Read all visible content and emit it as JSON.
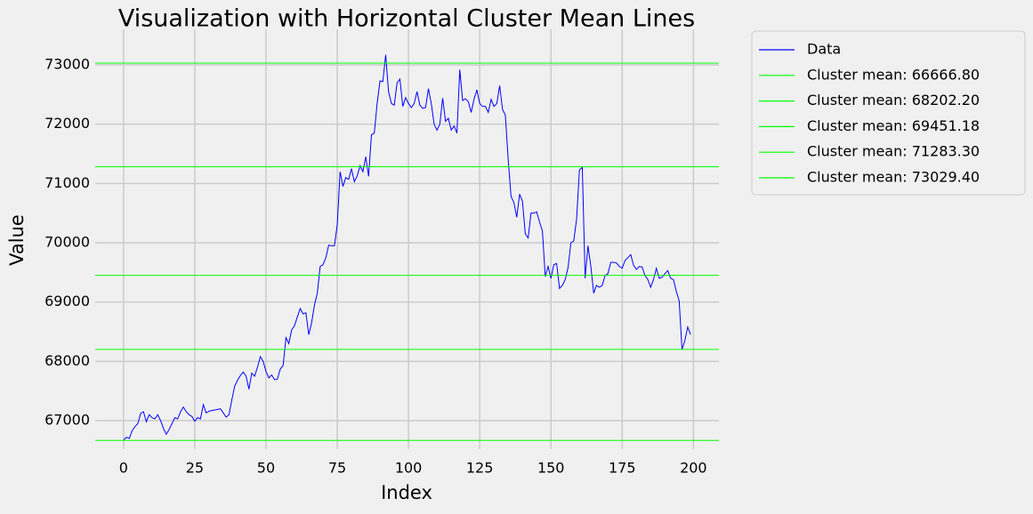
{
  "chart_data": {
    "type": "line",
    "title": "Visualization with Horizontal Cluster Mean Lines",
    "xlabel": "Index",
    "ylabel": "Value",
    "x": [
      0,
      1,
      2,
      3,
      4,
      5,
      6,
      7,
      8,
      9,
      10,
      11,
      12,
      13,
      14,
      15,
      16,
      17,
      18,
      19,
      20,
      21,
      22,
      23,
      24,
      25,
      26,
      27,
      28,
      29,
      30,
      31,
      32,
      33,
      34,
      35,
      36,
      37,
      38,
      39,
      40,
      41,
      42,
      43,
      44,
      45,
      46,
      47,
      48,
      49,
      50,
      51,
      52,
      53,
      54,
      55,
      56,
      57,
      58,
      59,
      60,
      61,
      62,
      63,
      64,
      65,
      66,
      67,
      68,
      69,
      70,
      71,
      72,
      73,
      74,
      75,
      76,
      77,
      78,
      79,
      80,
      81,
      82,
      83,
      84,
      85,
      86,
      87,
      88,
      89,
      90,
      91,
      92,
      93,
      94,
      95,
      96,
      97,
      98,
      99,
      100,
      101,
      102,
      103,
      104,
      105,
      106,
      107,
      108,
      109,
      110,
      111,
      112,
      113,
      114,
      115,
      116,
      117,
      118,
      119,
      120,
      121,
      122,
      123,
      124,
      125,
      126,
      127,
      128,
      129,
      130,
      131,
      132,
      133,
      134,
      135,
      136,
      137,
      138,
      139,
      140,
      141,
      142,
      143,
      144,
      145,
      146,
      147,
      148,
      149,
      150,
      151,
      152,
      153,
      154,
      155,
      156,
      157,
      158,
      159,
      160,
      161,
      162,
      163,
      164,
      165,
      166,
      167,
      168,
      169,
      170,
      171,
      172,
      173,
      174,
      175,
      176,
      177,
      178,
      179,
      180,
      181,
      182,
      183,
      184,
      185,
      186,
      187,
      188,
      189,
      190,
      191,
      192,
      193,
      194,
      195,
      196,
      197,
      198,
      199
    ],
    "series": [
      {
        "name": "Data",
        "color": "#0000ff",
        "values": [
          66670,
          66720,
          66700,
          66830,
          66900,
          66950,
          67120,
          67150,
          66980,
          67100,
          67050,
          67030,
          67100,
          67000,
          66870,
          66770,
          66850,
          66950,
          67050,
          67030,
          67150,
          67230,
          67150,
          67100,
          67070,
          66990,
          67050,
          67030,
          67270,
          67130,
          67160,
          67170,
          67180,
          67190,
          67200,
          67130,
          67060,
          67100,
          67350,
          67580,
          67680,
          67760,
          67820,
          67750,
          67530,
          67800,
          67750,
          67900,
          68080,
          68000,
          67830,
          67720,
          67770,
          67690,
          67700,
          67870,
          67930,
          68400,
          68300,
          68530,
          68600,
          68750,
          68890,
          68800,
          68820,
          68450,
          68650,
          68950,
          69150,
          69600,
          69630,
          69750,
          69960,
          69950,
          69950,
          70300,
          71200,
          70950,
          71100,
          71070,
          71250,
          71030,
          71130,
          71300,
          71200,
          71450,
          71120,
          71820,
          71850,
          72350,
          72730,
          72720,
          73170,
          72550,
          72350,
          72320,
          72700,
          72760,
          72300,
          72450,
          72350,
          72280,
          72350,
          72550,
          72320,
          72270,
          72280,
          72600,
          72350,
          72000,
          71900,
          72000,
          72440,
          72050,
          72100,
          71900,
          71970,
          71850,
          72920,
          72400,
          72430,
          72380,
          72200,
          72420,
          72580,
          72350,
          72300,
          72300,
          72200,
          72420,
          72300,
          72350,
          72650,
          72250,
          72150,
          71400,
          70780,
          70680,
          70430,
          70820,
          70700,
          70150,
          70080,
          70500,
          70500,
          70520,
          70350,
          70200,
          69430,
          69600,
          69400,
          69630,
          69650,
          69230,
          69280,
          69380,
          69580,
          70000,
          70030,
          70400,
          71230,
          71270,
          69400,
          69950,
          69600,
          69150,
          69280,
          69250,
          69280,
          69450,
          69480,
          69670,
          69670,
          69660,
          69600,
          69570,
          69700,
          69750,
          69800,
          69620,
          69550,
          69600,
          69590,
          69450,
          69380,
          69250,
          69380,
          69570,
          69400,
          69420,
          69480,
          69530,
          69400,
          69380,
          69180,
          69020,
          68200,
          68350,
          68580,
          68450
        ]
      }
    ],
    "hlines": [
      {
        "name": "Cluster mean: 66666.80",
        "value": 66666.8,
        "color": "#00ff00"
      },
      {
        "name": "Cluster mean: 68202.20",
        "value": 68202.2,
        "color": "#00ff00"
      },
      {
        "name": "Cluster mean: 69451.18",
        "value": 69451.18,
        "color": "#00ff00"
      },
      {
        "name": "Cluster mean: 71283.30",
        "value": 71283.3,
        "color": "#00ff00"
      },
      {
        "name": "Cluster mean: 73029.40",
        "value": 73029.4,
        "color": "#00ff00"
      }
    ],
    "xlim": [
      -9.95,
      208.95
    ],
    "ylim": [
      66520,
      73600
    ],
    "xticks": [
      0,
      25,
      50,
      75,
      100,
      125,
      150,
      175,
      200
    ],
    "yticks": [
      67000,
      68000,
      69000,
      70000,
      71000,
      72000,
      73000
    ],
    "grid": true,
    "legend": "outside right"
  }
}
